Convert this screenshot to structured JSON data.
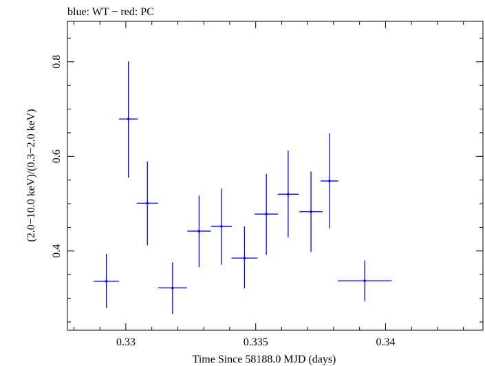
{
  "chart_data": {
    "type": "scatter",
    "title": "blue: WT − red: PC",
    "xlabel": "Time Since 58188.0 MJD (days)",
    "ylabel": "(2.0−10.0 keV)/(0.3−2.0 keV)",
    "xlim": [
      0.32775,
      0.34375
    ],
    "ylim": [
      0.2325,
      0.8855
    ],
    "x_ticks": [
      0.33,
      0.335,
      0.34
    ],
    "x_tick_labels": [
      "0.33",
      "0.335",
      "0.34"
    ],
    "y_ticks": [
      0.4,
      0.6,
      0.8
    ],
    "y_tick_labels": [
      "0.4",
      "0.6",
      "0.8"
    ],
    "grid": false,
    "colors": {
      "WT": "#0000ff"
    },
    "series": [
      {
        "name": "WT",
        "points": [
          {
            "x": 0.32925,
            "xerr": 0.00049,
            "y": 0.336,
            "ylo": 0.279,
            "yhi": 0.394
          },
          {
            "x": 0.3301,
            "xerr": 0.00036,
            "y": 0.679,
            "ylo": 0.555,
            "yhi": 0.801
          },
          {
            "x": 0.33083,
            "xerr": 0.00041,
            "y": 0.501,
            "ylo": 0.412,
            "yhi": 0.589
          },
          {
            "x": 0.3318,
            "xerr": 0.00056,
            "y": 0.322,
            "ylo": 0.267,
            "yhi": 0.376
          },
          {
            "x": 0.33282,
            "xerr": 0.00045,
            "y": 0.442,
            "ylo": 0.366,
            "yhi": 0.517
          },
          {
            "x": 0.33368,
            "xerr": 0.0004,
            "y": 0.452,
            "ylo": 0.371,
            "yhi": 0.532
          },
          {
            "x": 0.33457,
            "xerr": 0.0005,
            "y": 0.385,
            "ylo": 0.321,
            "yhi": 0.452
          },
          {
            "x": 0.33541,
            "xerr": 0.00045,
            "y": 0.478,
            "ylo": 0.392,
            "yhi": 0.563
          },
          {
            "x": 0.33625,
            "xerr": 0.0004,
            "y": 0.52,
            "ylo": 0.429,
            "yhi": 0.612
          },
          {
            "x": 0.33713,
            "xerr": 0.00045,
            "y": 0.483,
            "ylo": 0.398,
            "yhi": 0.568
          },
          {
            "x": 0.33784,
            "xerr": 0.00034,
            "y": 0.548,
            "ylo": 0.448,
            "yhi": 0.649
          },
          {
            "x": 0.3392,
            "xerr": 0.00104,
            "y": 0.337,
            "ylo": 0.294,
            "yhi": 0.38
          }
        ]
      }
    ]
  }
}
